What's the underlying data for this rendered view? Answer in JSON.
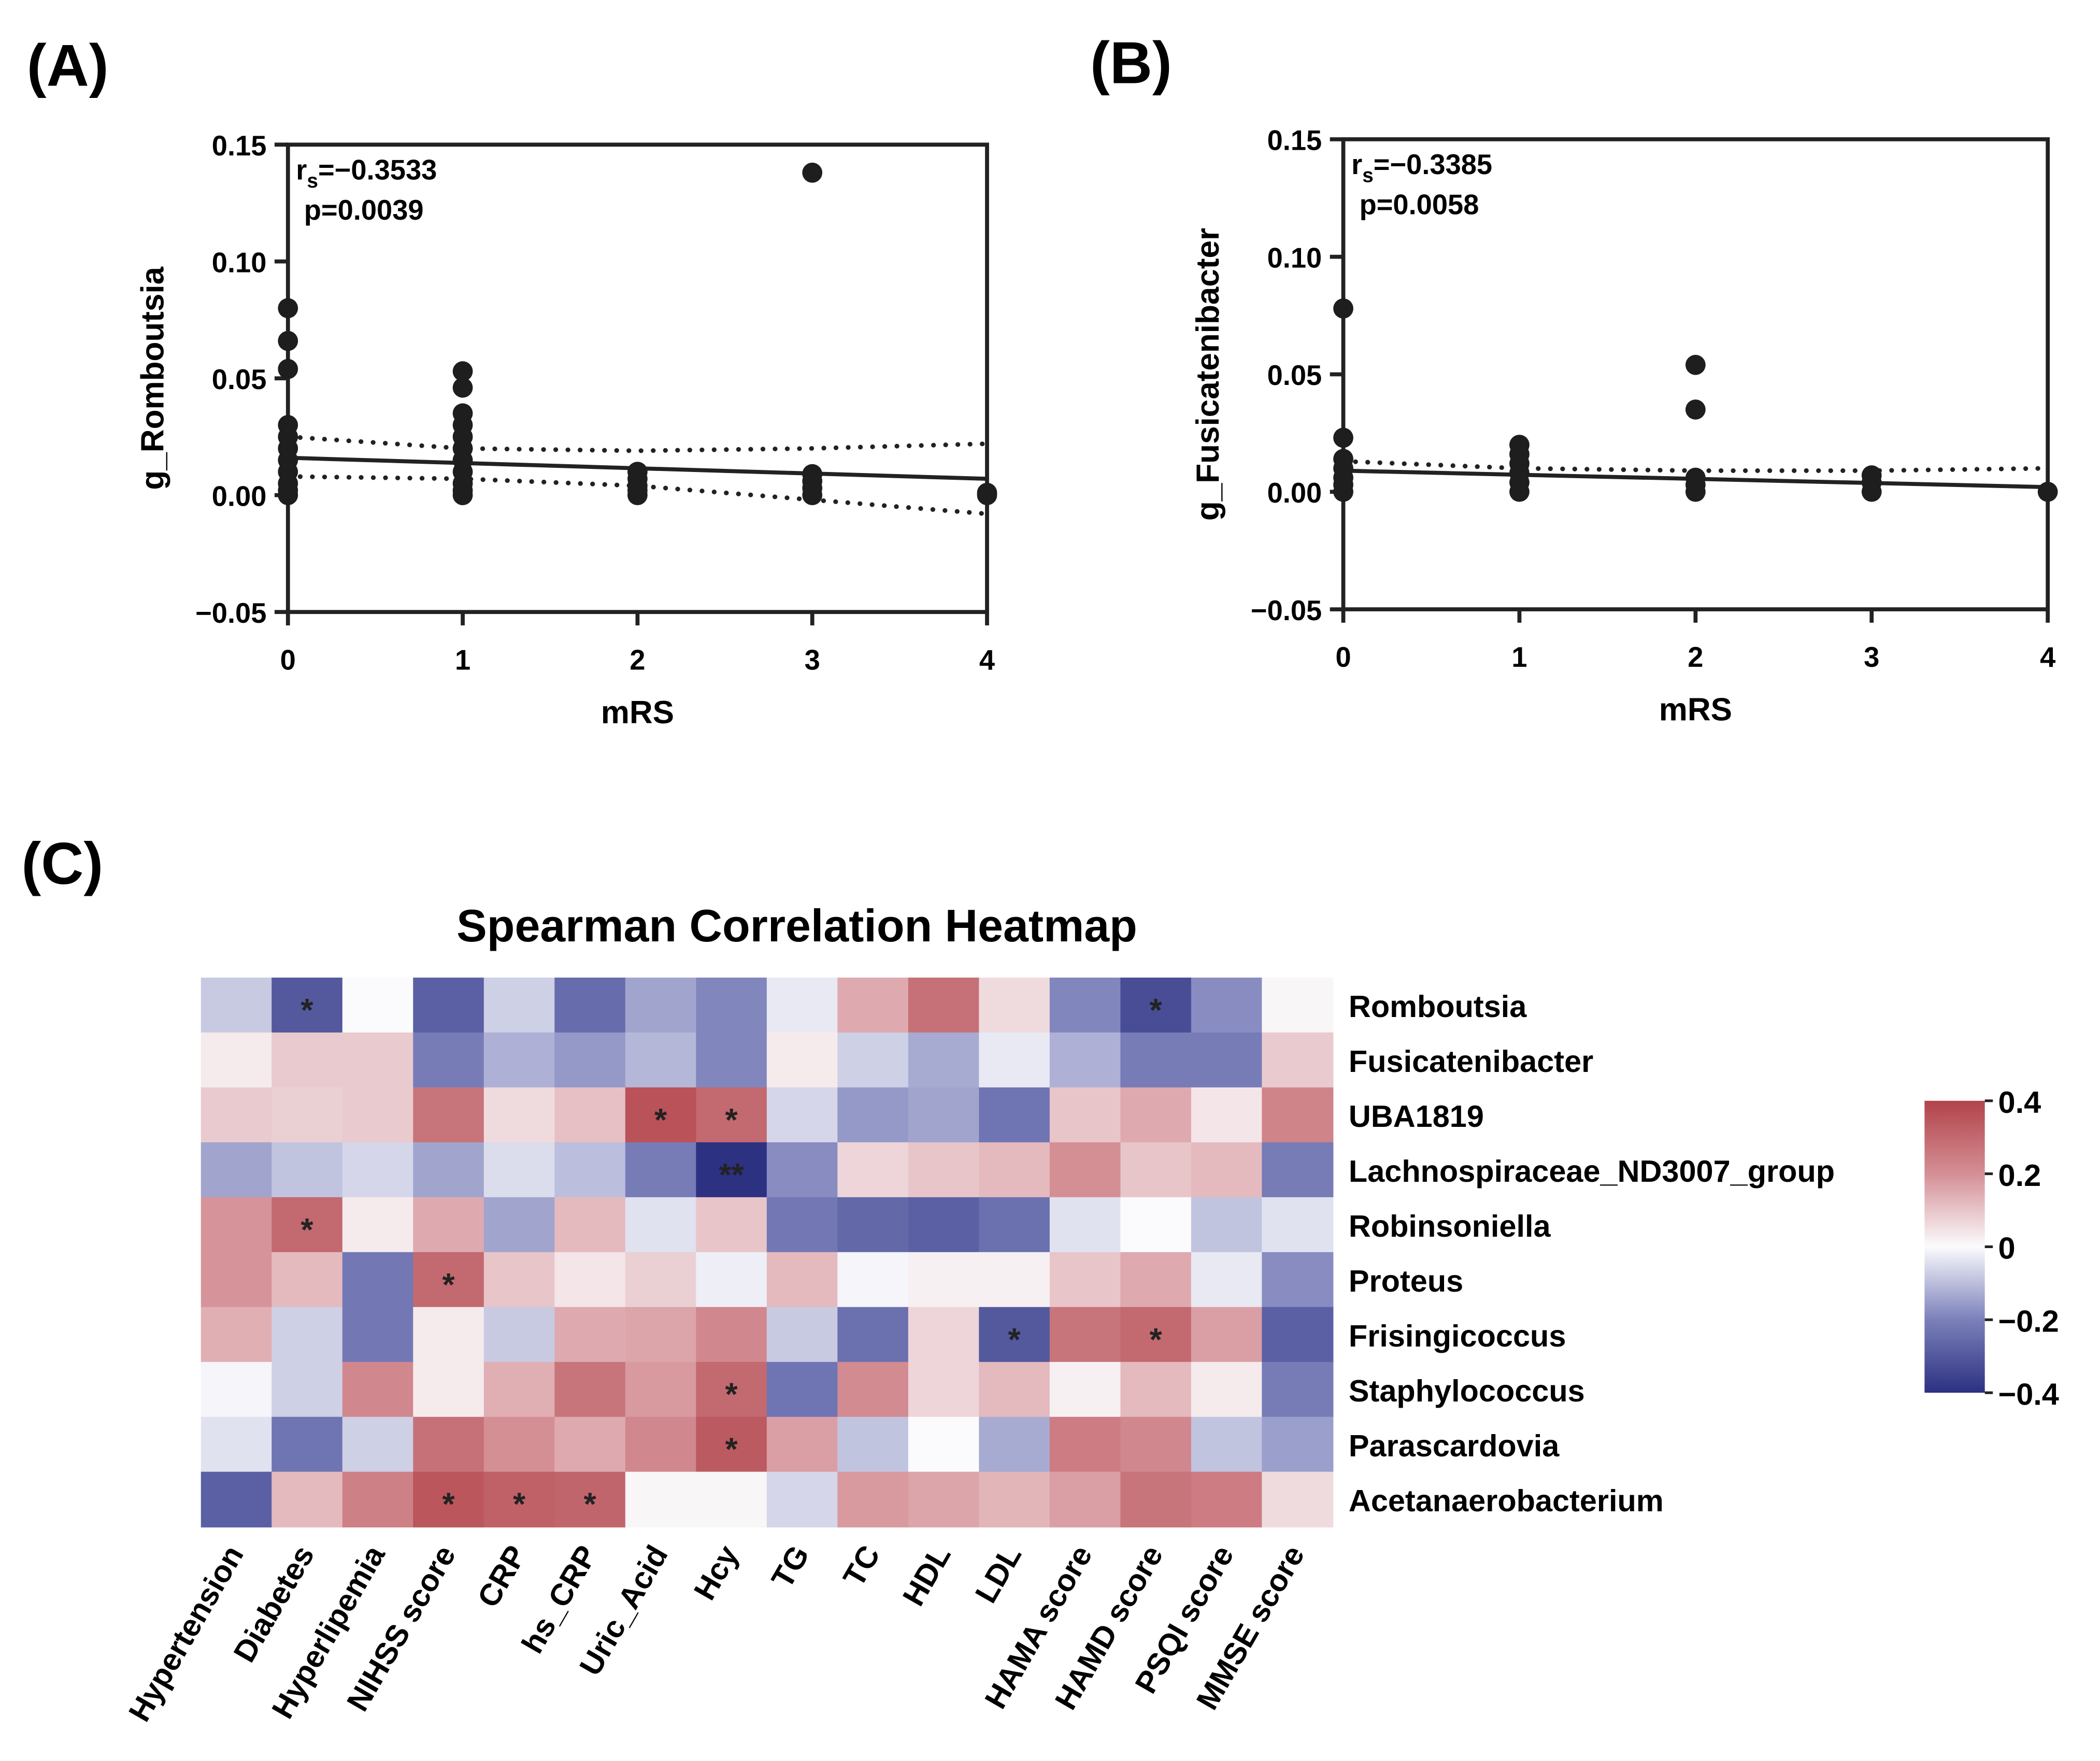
{
  "chart_data": [
    {
      "panel": "(A)",
      "type": "scatter",
      "xlabel": "mRS",
      "ylabel": "g_Romboutsia",
      "xlim": [
        0,
        4
      ],
      "ylim": [
        -0.05,
        0.15
      ],
      "xticks": [
        "0",
        "1",
        "2",
        "3",
        "4"
      ],
      "yticks": [
        "0.15",
        "0.10",
        "0.05",
        "0.00",
        "−0.05"
      ],
      "ytick_values": [
        0.15,
        0.1,
        0.05,
        0.0,
        -0.05
      ],
      "annotation": {
        "rs": "r",
        "rs_sub": "s",
        "rs_value": "=−0.3533",
        "p": "p=0.0039"
      },
      "points": [
        [
          0,
          0.08
        ],
        [
          0,
          0.066
        ],
        [
          0,
          0.054
        ],
        [
          0,
          0.03
        ],
        [
          0,
          0.025
        ],
        [
          0,
          0.02
        ],
        [
          0,
          0.015
        ],
        [
          0,
          0.01
        ],
        [
          0,
          0.005
        ],
        [
          0,
          0.002
        ],
        [
          0,
          0.0
        ],
        [
          1,
          0.053
        ],
        [
          1,
          0.046
        ],
        [
          1,
          0.035
        ],
        [
          1,
          0.03
        ],
        [
          1,
          0.025
        ],
        [
          1,
          0.02
        ],
        [
          1,
          0.015
        ],
        [
          1,
          0.01
        ],
        [
          1,
          0.005
        ],
        [
          1,
          0.002
        ],
        [
          1,
          0.0
        ],
        [
          2,
          0.01
        ],
        [
          2,
          0.007
        ],
        [
          2,
          0.004
        ],
        [
          2,
          0.002
        ],
        [
          2,
          0.0
        ],
        [
          3,
          0.138
        ],
        [
          3,
          0.009
        ],
        [
          3,
          0.006
        ],
        [
          3,
          0.003
        ],
        [
          3,
          0.0
        ],
        [
          4,
          0.001
        ],
        [
          4,
          0.0
        ]
      ],
      "fit": [
        [
          0,
          0.016
        ],
        [
          4,
          0.007
        ]
      ],
      "ci_upper": [
        [
          0,
          0.025
        ],
        [
          1,
          0.02
        ],
        [
          2,
          0.019
        ],
        [
          3,
          0.02
        ],
        [
          4,
          0.022
        ]
      ],
      "ci_lower": [
        [
          0,
          0.008
        ],
        [
          1,
          0.007
        ],
        [
          2,
          0.004
        ],
        [
          3,
          -0.002
        ],
        [
          4,
          -0.008
        ]
      ]
    },
    {
      "panel": "(B)",
      "type": "scatter",
      "xlabel": "mRS",
      "ylabel": "g_Fusicatenibacter",
      "xlim": [
        0,
        4
      ],
      "ylim": [
        -0.05,
        0.15
      ],
      "xticks": [
        "0",
        "1",
        "2",
        "3",
        "4"
      ],
      "yticks": [
        "0.15",
        "0.10",
        "0.05",
        "0.00",
        "−0.05"
      ],
      "ytick_values": [
        0.15,
        0.1,
        0.05,
        0.0,
        -0.05
      ],
      "annotation": {
        "rs": "r",
        "rs_sub": "s",
        "rs_value": "=−0.3385",
        "p": "p=0.0058"
      },
      "points": [
        [
          0,
          0.078
        ],
        [
          0,
          0.023
        ],
        [
          0,
          0.014
        ],
        [
          0,
          0.01
        ],
        [
          0,
          0.006
        ],
        [
          0,
          0.003
        ],
        [
          0,
          0.0
        ],
        [
          1,
          0.02
        ],
        [
          1,
          0.016
        ],
        [
          1,
          0.012
        ],
        [
          1,
          0.008
        ],
        [
          1,
          0.004
        ],
        [
          1,
          0.0
        ],
        [
          2,
          0.054
        ],
        [
          2,
          0.035
        ],
        [
          2,
          0.006
        ],
        [
          2,
          0.003
        ],
        [
          2,
          0.0
        ],
        [
          3,
          0.007
        ],
        [
          3,
          0.004
        ],
        [
          3,
          0.0
        ],
        [
          4,
          0.0
        ]
      ],
      "fit": [
        [
          0,
          0.009
        ],
        [
          4,
          0.002
        ]
      ],
      "ci_upper": [
        [
          0,
          0.013
        ],
        [
          1,
          0.01
        ],
        [
          2,
          0.009
        ],
        [
          3,
          0.009
        ],
        [
          4,
          0.01
        ]
      ],
      "ci_lower": []
    },
    {
      "panel": "(C)",
      "type": "heatmap",
      "title": "Spearman Correlation Heatmap",
      "rows": [
        "Romboutsia",
        "Fusicatenibacter",
        "UBA1819",
        "Lachnospiraceae_ND3007_group",
        "Robinsoniella",
        "Proteus",
        "Frisingicoccus",
        "Staphylococcus",
        "Parascardovia",
        "Acetanaerobacterium"
      ],
      "columns": [
        "Hypertension",
        "Diabetes",
        "Hyperlipemia",
        "NIHSS score",
        "CRP",
        "hs_CRP",
        "Uric_Acid",
        "Hcy",
        "TG",
        "TC",
        "HDL",
        "LDL",
        "HAMA score",
        "HAMD score",
        "PSQI score",
        "MMSE score"
      ],
      "values": [
        [
          -0.08,
          -0.3,
          0.0,
          -0.28,
          -0.07,
          -0.25,
          -0.14,
          -0.19,
          -0.03,
          0.15,
          0.28,
          0.06,
          -0.19,
          -0.33,
          -0.18,
          0.01
        ],
        [
          0.03,
          0.09,
          0.09,
          -0.21,
          -0.12,
          -0.16,
          -0.11,
          -0.19,
          0.03,
          -0.07,
          -0.13,
          -0.03,
          -0.12,
          -0.21,
          -0.21,
          0.09
        ],
        [
          0.09,
          0.08,
          0.09,
          0.27,
          0.06,
          0.11,
          0.36,
          0.3,
          -0.06,
          -0.16,
          -0.14,
          -0.23,
          0.1,
          0.15,
          0.04,
          0.23
        ],
        [
          -0.14,
          -0.09,
          -0.06,
          -0.14,
          -0.05,
          -0.1,
          -0.21,
          -0.42,
          -0.18,
          0.07,
          0.1,
          0.12,
          0.2,
          0.1,
          0.12,
          -0.21
        ],
        [
          0.19,
          0.3,
          0.03,
          0.15,
          -0.14,
          0.12,
          -0.04,
          0.1,
          -0.22,
          -0.26,
          -0.28,
          -0.24,
          -0.04,
          0.0,
          -0.09,
          -0.04
        ],
        [
          0.19,
          0.12,
          -0.22,
          0.3,
          0.1,
          0.04,
          0.08,
          -0.02,
          0.12,
          -0.01,
          0.02,
          0.02,
          0.1,
          0.15,
          -0.03,
          -0.18
        ],
        [
          0.14,
          -0.07,
          -0.22,
          0.03,
          -0.08,
          0.15,
          0.16,
          0.22,
          -0.08,
          -0.24,
          0.07,
          -0.3,
          0.27,
          0.3,
          0.17,
          -0.28
        ],
        [
          -0.01,
          -0.07,
          0.22,
          0.03,
          0.14,
          0.27,
          0.18,
          0.3,
          -0.23,
          0.21,
          0.07,
          0.12,
          0.02,
          0.12,
          0.03,
          -0.21
        ],
        [
          -0.04,
          -0.23,
          -0.07,
          0.28,
          0.2,
          0.15,
          0.22,
          0.34,
          0.17,
          -0.09,
          0.0,
          -0.13,
          0.25,
          0.22,
          -0.09,
          -0.15
        ],
        [
          -0.28,
          0.12,
          0.24,
          0.35,
          0.32,
          0.31,
          0.01,
          0.01,
          -0.06,
          0.18,
          0.16,
          0.13,
          0.17,
          0.27,
          0.25,
          0.06
        ]
      ],
      "significance": [
        [
          "",
          "*",
          "",
          "",
          "",
          "",
          "",
          "",
          "",
          "",
          "",
          "",
          "",
          "*",
          "",
          ""
        ],
        [
          "",
          "",
          "",
          "",
          "",
          "",
          "",
          "",
          "",
          "",
          "",
          "",
          "",
          "",
          "",
          ""
        ],
        [
          "",
          "",
          "",
          "",
          "",
          "",
          "*",
          "*",
          "",
          "",
          "",
          "",
          "",
          "",
          "",
          ""
        ],
        [
          "",
          "",
          "",
          "",
          "",
          "",
          "",
          "**",
          "",
          "",
          "",
          "",
          "",
          "",
          "",
          ""
        ],
        [
          "",
          "*",
          "",
          "",
          "",
          "",
          "",
          "",
          "",
          "",
          "",
          "",
          "",
          "",
          "",
          ""
        ],
        [
          "",
          "",
          "",
          "*",
          "",
          "",
          "",
          "",
          "",
          "",
          "",
          "",
          "",
          "",
          "",
          ""
        ],
        [
          "",
          "",
          "",
          "",
          "",
          "",
          "",
          "",
          "",
          "",
          "",
          "*",
          "",
          "*",
          "",
          ""
        ],
        [
          "",
          "",
          "",
          "",
          "",
          "",
          "",
          "*",
          "",
          "",
          "",
          "",
          "",
          "",
          "",
          ""
        ],
        [
          "",
          "",
          "",
          "",
          "",
          "",
          "",
          "*",
          "",
          "",
          "",
          "",
          "",
          "",
          "",
          ""
        ],
        [
          "",
          "",
          "",
          "*",
          "*",
          "*",
          "",
          "",
          "",
          "",
          "",
          "",
          "",
          "",
          "",
          ""
        ]
      ],
      "colorbar": {
        "range": [
          -0.4,
          0.4
        ],
        "ticks": [
          "0.4",
          "0.2",
          "0",
          "−0.2",
          "−0.4"
        ],
        "tick_values": [
          0.4,
          0.2,
          0,
          -0.2,
          -0.4
        ]
      },
      "colors": {
        "neg": "#2c3182",
        "neg_mid": "#7b80ba",
        "zero": "#fbfbfd",
        "pos_mid": "#d48f95",
        "pos": "#b2434a"
      }
    }
  ]
}
